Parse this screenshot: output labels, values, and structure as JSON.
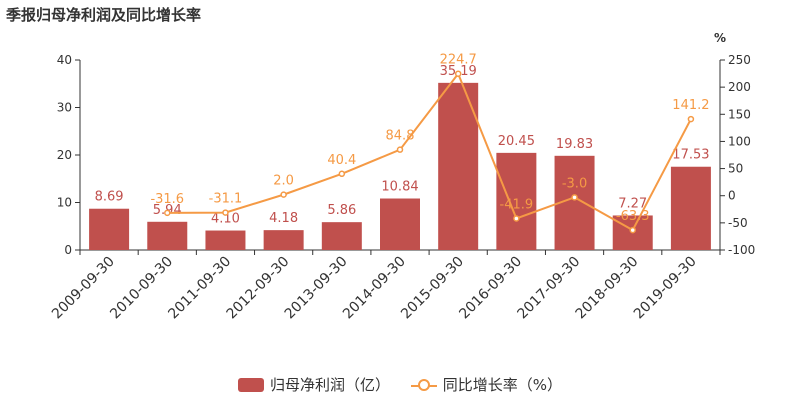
{
  "title": "季报归母净利润及同比增长率",
  "colors": {
    "bar": "#c0504d",
    "line": "#f59a45",
    "axis": "#333333"
  },
  "chart_data": {
    "type": "bar",
    "categories": [
      "2009-09-30",
      "2010-09-30",
      "2011-09-30",
      "2012-09-30",
      "2013-09-30",
      "2014-09-30",
      "2015-09-30",
      "2016-09-30",
      "2017-09-30",
      "2018-09-30",
      "2019-09-30"
    ],
    "series": [
      {
        "name": "归母净利润（亿）",
        "type": "bar",
        "axis": "left",
        "values": [
          8.69,
          5.94,
          4.1,
          4.18,
          5.86,
          10.84,
          35.19,
          20.45,
          19.83,
          7.27,
          17.53
        ],
        "labels": [
          "8.69",
          "5.94",
          "4.10",
          "4.18",
          "5.86",
          "10.84",
          "35.19",
          "20.45",
          "19.83",
          "7.27",
          "17.53"
        ]
      },
      {
        "name": "同比增长率（%）",
        "type": "line",
        "axis": "right",
        "values": [
          null,
          -31.6,
          -31.1,
          2.0,
          40.4,
          84.8,
          224.7,
          -41.9,
          -3.0,
          -63.3,
          141.2
        ],
        "labels": [
          "",
          "-31.6",
          "-31.1",
          "2.0",
          "40.4",
          "84.8",
          "224.7",
          "-41.9",
          "-3.0",
          "-63.3",
          "141.2"
        ]
      }
    ],
    "y_left": {
      "ylim": [
        0,
        40
      ],
      "ticks": [
        "0",
        "10",
        "20",
        "30",
        "40"
      ]
    },
    "y_right": {
      "ylim": [
        -100,
        250
      ],
      "ticks": [
        "-100",
        "-50",
        "0",
        "50",
        "100",
        "150",
        "200",
        "250"
      ],
      "unit": "%"
    },
    "grid": false,
    "legend_position": "bottom"
  }
}
